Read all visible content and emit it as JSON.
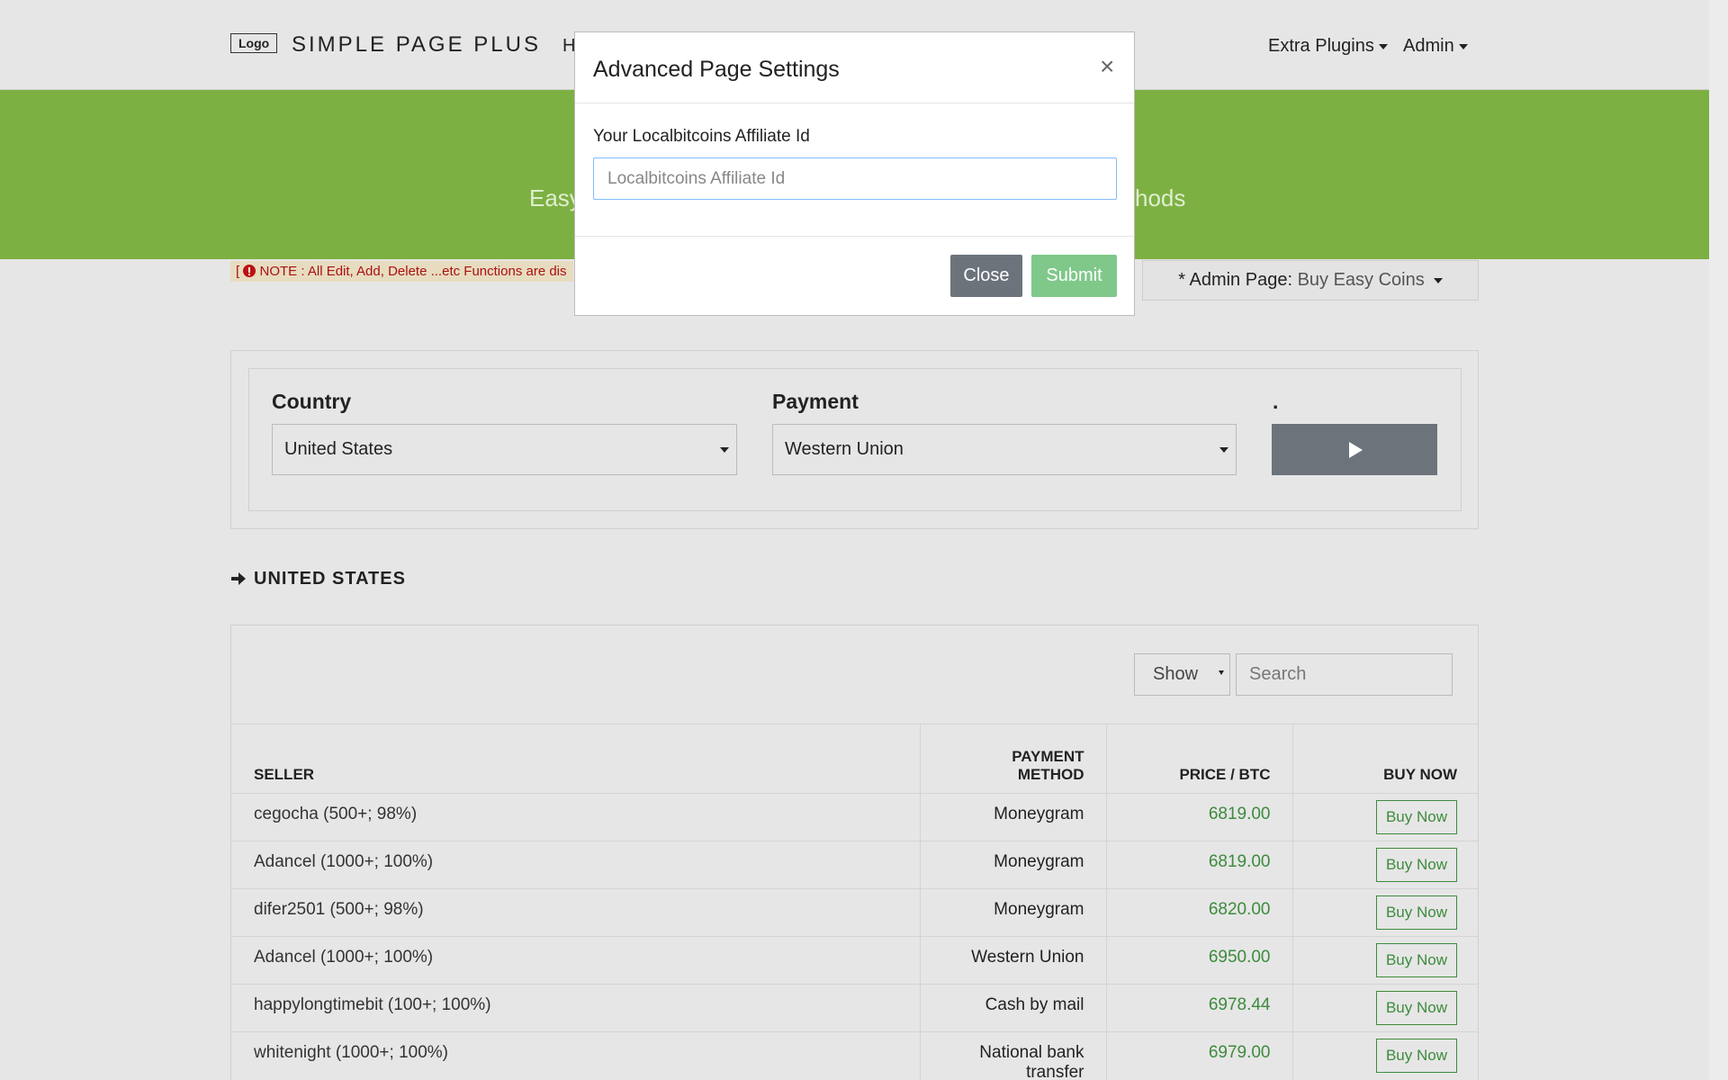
{
  "navbar": {
    "logo": "Logo",
    "brand": "SIMPLE PAGE PLUS",
    "link_fragment": "H",
    "menus": [
      "Extra Plugins",
      "Admin"
    ]
  },
  "banner": {
    "left_fragment": "Easy",
    "right_fragment": "hods"
  },
  "note": {
    "bracket": "[",
    "text": "NOTE : All Edit, Add, Delete ...etc Functions are dis"
  },
  "admin_page": {
    "label": "* Admin Page:",
    "value": "Buy Easy Coins"
  },
  "filter": {
    "country_label": "Country",
    "country_value": "United States",
    "payment_label": "Payment",
    "payment_value": "Western Union",
    "button_label": "."
  },
  "section_title": "UNITED STATES",
  "table": {
    "show": "Show",
    "search_placeholder": "Search",
    "columns": [
      "SELLER",
      "PAYMENT\nMETHOD",
      "PRICE / BTC",
      "BUY NOW"
    ],
    "rows": [
      [
        "cegocha (500+; 98%)",
        "Moneygram",
        "6819.00",
        "Buy Now"
      ],
      [
        "Adancel (1000+; 100%)",
        "Moneygram",
        "6819.00",
        "Buy Now"
      ],
      [
        "difer2501 (500+; 98%)",
        "Moneygram",
        "6820.00",
        "Buy Now"
      ],
      [
        "Adancel (1000+; 100%)",
        "Western Union",
        "6950.00",
        "Buy Now"
      ],
      [
        "happylongtimebit (100+; 100%)",
        "Cash by mail",
        "6978.44",
        "Buy Now"
      ],
      [
        "whitenight (1000+; 100%)",
        "National bank transfer",
        "6979.00",
        "Buy Now"
      ]
    ]
  },
  "modal": {
    "title": "Advanced Page Settings",
    "close_icon": "×",
    "field_label": "Your Localbitcoins Affiliate Id",
    "field_placeholder": "Localbitcoins Affiliate Id",
    "close_button": "Close",
    "submit_button": "Submit"
  }
}
